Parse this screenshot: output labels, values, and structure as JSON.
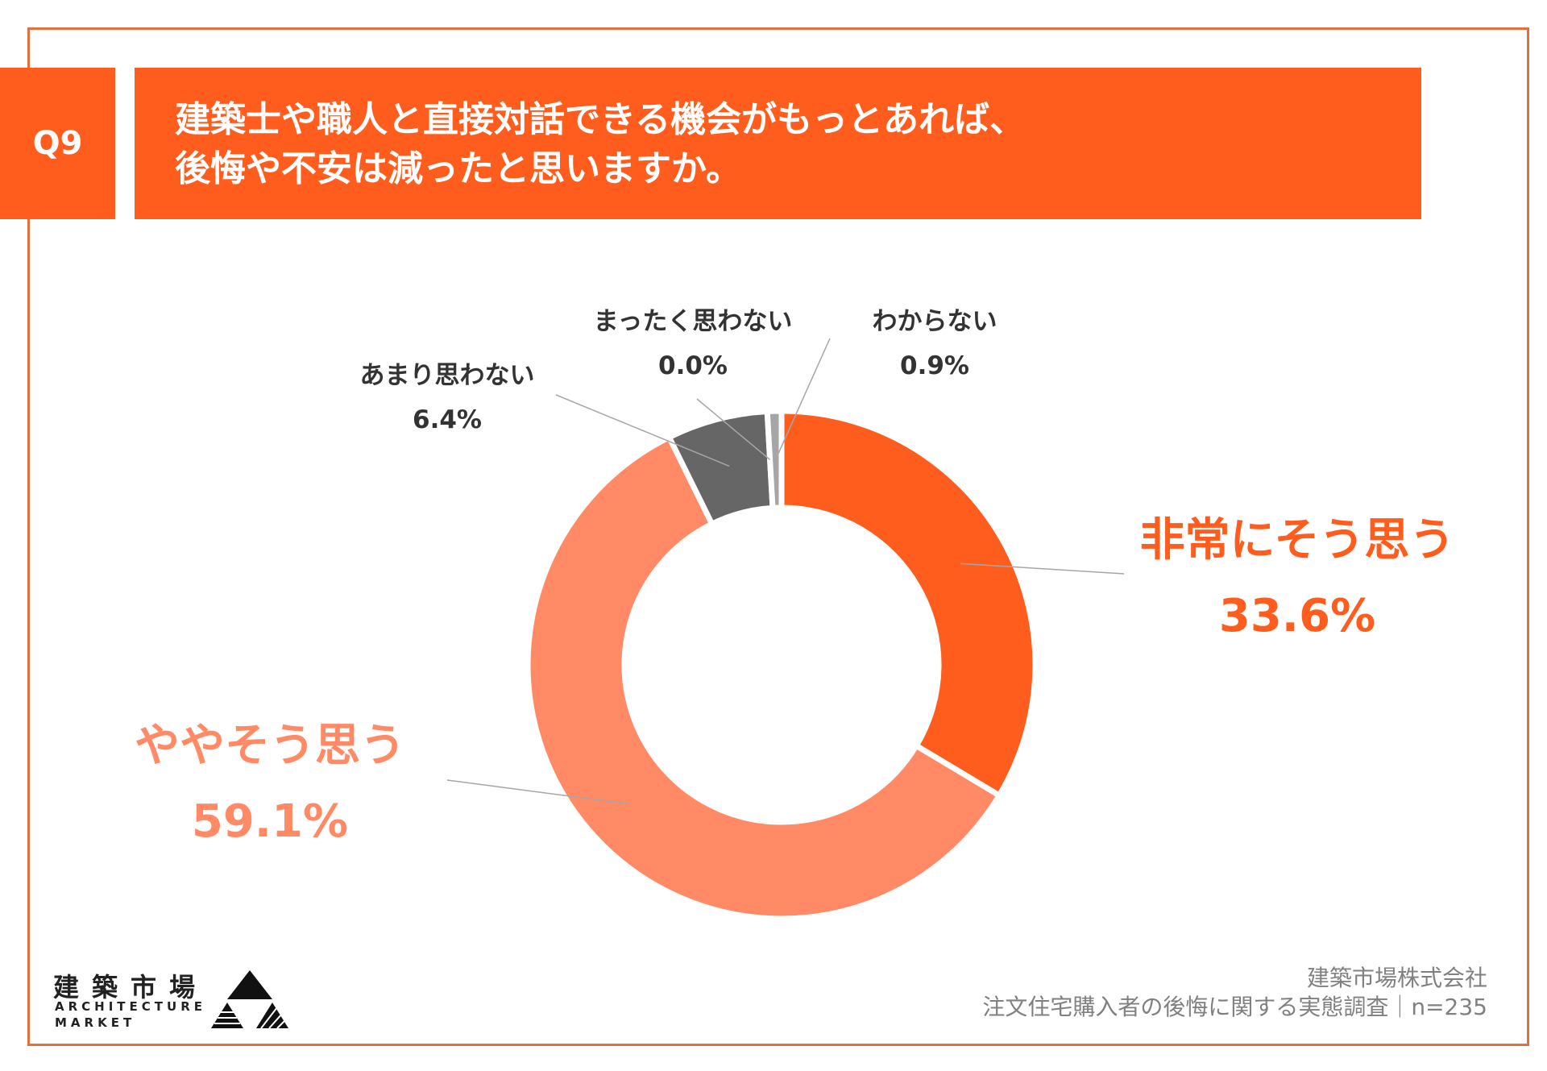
{
  "header": {
    "badge": "Q9",
    "question_line1": "建築士や職人と直接対話できる機会がもっとあれば、",
    "question_line2": "後悔や不安は減ったと思いますか。"
  },
  "chart_data": {
    "type": "pie",
    "title": "",
    "donut": true,
    "slices": [
      {
        "label": "非常にそう思う",
        "display": "33.6%",
        "value": 33.6,
        "color": "#FF5D1E"
      },
      {
        "label": "ややそう思う",
        "display": "59.1%",
        "value": 59.1,
        "color": "#FF8A65"
      },
      {
        "label": "あまり思わない",
        "display": "6.4%",
        "value": 6.4,
        "color": "#666666"
      },
      {
        "label": "まったく思わない",
        "display": "0.0%",
        "value": 0.0,
        "color": "#333333"
      },
      {
        "label": "わからない",
        "display": "0.9%",
        "value": 0.9,
        "color": "#A6A6A6"
      }
    ]
  },
  "footer": {
    "logo_kanji": "建築市場",
    "logo_en_line1": "ARCHITECTURE",
    "logo_en_line2": "MARKET",
    "source_line1": "建築市場株式会社",
    "source_line2": "注文住宅購入者の後悔に関する実態調査｜n=235"
  }
}
